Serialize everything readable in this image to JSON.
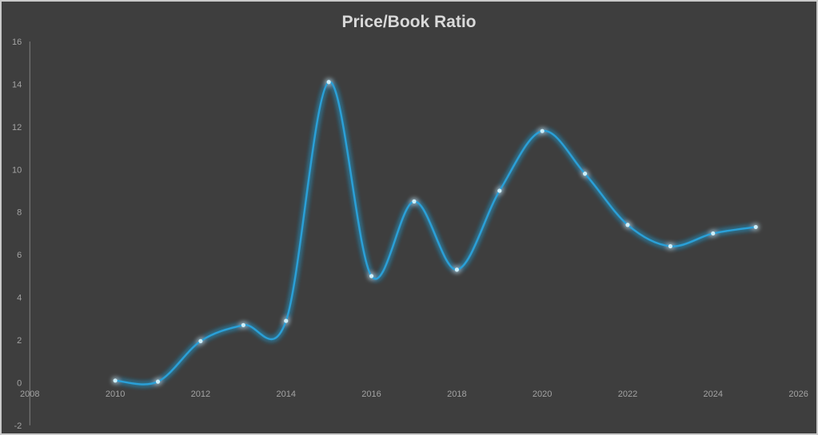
{
  "window": {
    "background": "#3e3e3e",
    "border_color": "#c9c9c9"
  },
  "chart_data": {
    "type": "line",
    "title": "Price/Book Ratio",
    "x": [
      2010,
      2011,
      2012,
      2013,
      2014,
      2015,
      2016,
      2017,
      2018,
      2019,
      2020,
      2021,
      2022,
      2023,
      2024,
      2025
    ],
    "values": [
      0.1,
      0.05,
      1.95,
      2.7,
      2.9,
      14.1,
      5.0,
      8.5,
      5.3,
      9.0,
      11.8,
      9.8,
      7.4,
      6.4,
      7.0,
      7.3
    ],
    "xlabel": "",
    "ylabel": "",
    "xlim": [
      2008,
      2026
    ],
    "ylim": [
      -2,
      16
    ],
    "x_ticks": [
      2008,
      2010,
      2012,
      2014,
      2016,
      2018,
      2020,
      2022,
      2024,
      2026
    ],
    "y_ticks": [
      -2,
      0,
      2,
      4,
      6,
      8,
      10,
      12,
      14,
      16
    ],
    "grid": false,
    "legend": "none",
    "smooth_line": true,
    "glow_effect": true,
    "line_color": "#29a0d8",
    "marker_color": "#cdeef9",
    "axis_line_color": "#7f7f7f",
    "tick_label_color": "#a3a3a3",
    "title_color": "#d9d9d9"
  }
}
